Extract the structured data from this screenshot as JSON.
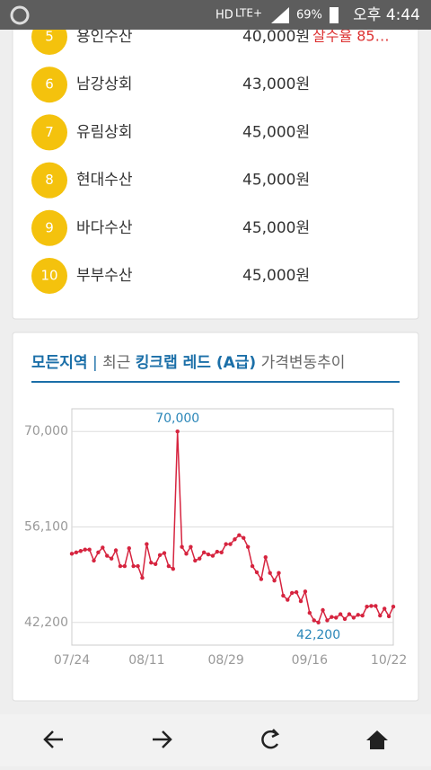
{
  "status_bar": {
    "network": "HD",
    "lte": "LTE+",
    "battery": "69%",
    "time": "오후 4:44"
  },
  "list": [
    {
      "rank": "5",
      "name": "용인수산",
      "price": "40,000원",
      "note": "살수율 85…"
    },
    {
      "rank": "6",
      "name": "남강상회",
      "price": "43,000원"
    },
    {
      "rank": "7",
      "name": "유림상회",
      "price": "45,000원"
    },
    {
      "rank": "8",
      "name": "현대수산",
      "price": "45,000원"
    },
    {
      "rank": "9",
      "name": "바다수산",
      "price": "45,000원"
    },
    {
      "rank": "10",
      "name": "부부수산",
      "price": "45,000원"
    }
  ],
  "chart_data": {
    "type": "line",
    "title": {
      "region": "모든지역",
      "separator": "|",
      "prefix": "최근",
      "product": "킹크랩 레드 (A급)",
      "suffix": "가격변동추이"
    },
    "color": "#d6243f",
    "categories": [
      "07/24",
      null,
      null,
      null,
      null,
      null,
      null,
      null,
      null,
      null,
      null,
      null,
      null,
      null,
      null,
      null,
      null,
      "08/11",
      null,
      null,
      null,
      null,
      null,
      null,
      null,
      null,
      null,
      null,
      null,
      null,
      null,
      null,
      null,
      null,
      null,
      "08/29",
      null,
      null,
      null,
      null,
      null,
      null,
      null,
      null,
      null,
      null,
      null,
      null,
      null,
      null,
      null,
      null,
      null,
      null,
      "09/16",
      null,
      null,
      null,
      null,
      null,
      null,
      null,
      null,
      null,
      null,
      null,
      null,
      null,
      null,
      null,
      null,
      null,
      "10/22",
      null
    ],
    "values": [
      52200,
      52400,
      52600,
      52800,
      52800,
      51200,
      52400,
      53100,
      51900,
      51500,
      52700,
      50400,
      50400,
      53000,
      50400,
      50400,
      48700,
      53600,
      50900,
      50700,
      52000,
      52300,
      50400,
      50000,
      70000,
      53200,
      52200,
      53200,
      51200,
      51500,
      52400,
      52100,
      51900,
      52500,
      52400,
      53600,
      53600,
      54300,
      54900,
      54500,
      53200,
      50400,
      49500,
      48500,
      51700,
      49400,
      48300,
      49400,
      46100,
      45500,
      46500,
      46600,
      45300,
      46700,
      43600,
      42500,
      42200,
      44000,
      42500,
      43000,
      42900,
      43400,
      42700,
      43400,
      42900,
      43300,
      43200,
      44500,
      44600,
      44600,
      43200,
      44200,
      43100,
      44500
    ],
    "value_labels": [
      null,
      null,
      null,
      null,
      null,
      null,
      null,
      null,
      null,
      null,
      null,
      null,
      null,
      null,
      null,
      null,
      null,
      null,
      null,
      null,
      null,
      null,
      null,
      null,
      "70,000",
      null,
      null,
      null,
      null,
      null,
      null,
      null,
      null,
      null,
      null,
      null,
      null,
      null,
      null,
      null,
      null,
      null,
      null,
      null,
      null,
      null,
      null,
      null,
      null,
      null,
      null,
      null,
      null,
      null,
      null,
      null,
      "42,200",
      null,
      null,
      null,
      null,
      null,
      null,
      null,
      null,
      null,
      null,
      null,
      null,
      null,
      null,
      null,
      null,
      null
    ],
    "ylim": [
      38900,
      73300
    ],
    "yticks": [
      {
        "value": 42200,
        "label": "42,200"
      },
      {
        "value": 56100,
        "label": "56,100"
      },
      {
        "value": 70000,
        "label": "70,000"
      }
    ],
    "grid": true
  }
}
